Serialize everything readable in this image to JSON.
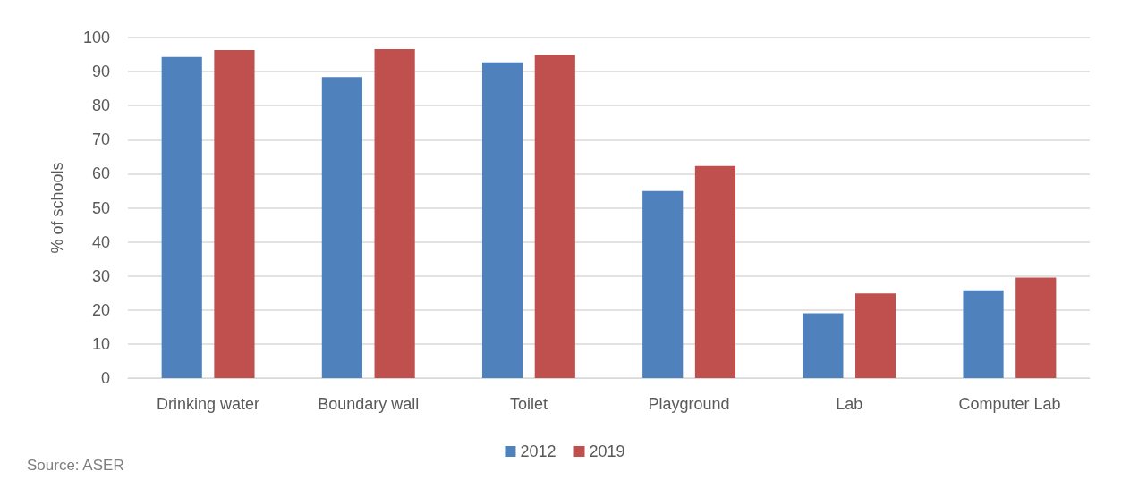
{
  "chart_data": {
    "type": "bar",
    "ylabel": "% of schools",
    "categories": [
      "Drinking water",
      "Boundary wall",
      "Toilet",
      "Playground",
      "Lab",
      "Computer Lab"
    ],
    "series": [
      {
        "name": "2012",
        "color": "#4f81bd",
        "values": [
          94.3,
          88.4,
          92.7,
          54.9,
          19.0,
          25.8
        ]
      },
      {
        "name": "2019",
        "color": "#c0504d",
        "values": [
          96.3,
          96.6,
          94.9,
          62.3,
          24.9,
          29.5
        ]
      }
    ],
    "ylim": [
      0,
      100
    ],
    "yticks": [
      0,
      10,
      20,
      30,
      40,
      50,
      60,
      70,
      80,
      90,
      100
    ],
    "grid": "y",
    "legend": "bottom",
    "annotations": [
      "Source: ASER"
    ]
  }
}
